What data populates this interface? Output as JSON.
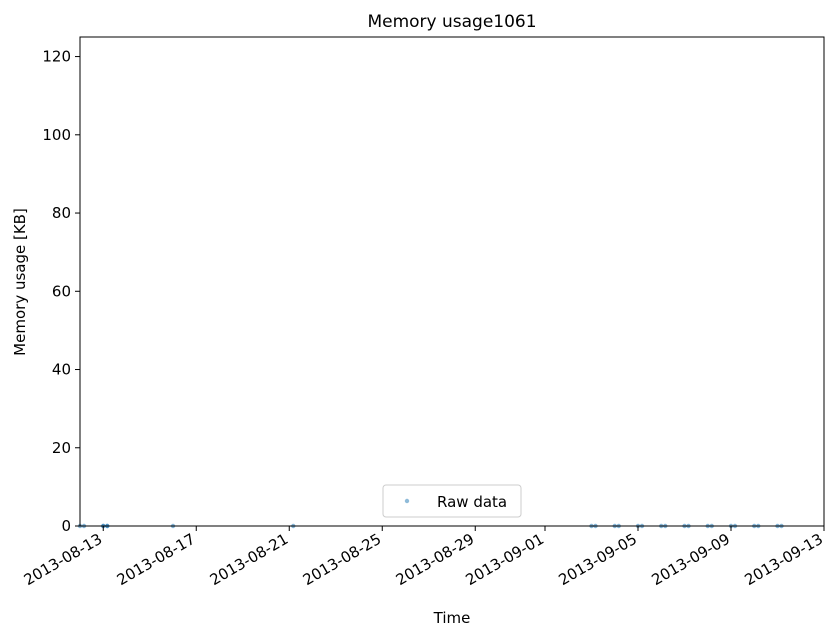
{
  "chart_data": {
    "type": "scatter",
    "title": "Memory usage1061",
    "xlabel": "Time",
    "ylabel": "Memory usage [KB]",
    "x_axis": {
      "type": "date",
      "min": "2013-08-12",
      "max": "2013-09-13",
      "ticks": [
        "2013-08-13",
        "2013-08-17",
        "2013-08-21",
        "2013-08-25",
        "2013-08-29",
        "2013-09-01",
        "2013-09-05",
        "2013-09-09",
        "2013-09-13"
      ]
    },
    "y_axis": {
      "min": 0,
      "max": 125,
      "ticks": [
        0,
        20,
        40,
        60,
        80,
        100,
        120
      ]
    },
    "grid": false,
    "legend": {
      "placement": "bottom-center",
      "entries": [
        "Raw data"
      ]
    },
    "series": [
      {
        "name": "Raw data",
        "color": "#1f77b4",
        "marker": "dot",
        "points": [
          {
            "x": "2013-08-12",
            "y": 0
          },
          {
            "x": "2013-08-12",
            "y": 0
          },
          {
            "x": "2013-08-13",
            "y": 0
          },
          {
            "x": "2013-08-13",
            "y": 0
          },
          {
            "x": "2013-08-13",
            "y": 0
          },
          {
            "x": "2013-08-13",
            "y": 0
          },
          {
            "x": "2013-08-16",
            "y": 0
          },
          {
            "x": "2013-08-21",
            "y": 0
          },
          {
            "x": "2013-09-03",
            "y": 0
          },
          {
            "x": "2013-09-03",
            "y": 0
          },
          {
            "x": "2013-09-04",
            "y": 0
          },
          {
            "x": "2013-09-04",
            "y": 0
          },
          {
            "x": "2013-09-05",
            "y": 0
          },
          {
            "x": "2013-09-05",
            "y": 0
          },
          {
            "x": "2013-09-06",
            "y": 0
          },
          {
            "x": "2013-09-06",
            "y": 0
          },
          {
            "x": "2013-09-07",
            "y": 0
          },
          {
            "x": "2013-09-07",
            "y": 0
          },
          {
            "x": "2013-09-08",
            "y": 0
          },
          {
            "x": "2013-09-08",
            "y": 0
          },
          {
            "x": "2013-09-09",
            "y": 0
          },
          {
            "x": "2013-09-09",
            "y": 0
          },
          {
            "x": "2013-09-10",
            "y": 0
          },
          {
            "x": "2013-09-10",
            "y": 0
          },
          {
            "x": "2013-09-11",
            "y": 0
          },
          {
            "x": "2013-09-11",
            "y": 0
          }
        ]
      }
    ]
  }
}
